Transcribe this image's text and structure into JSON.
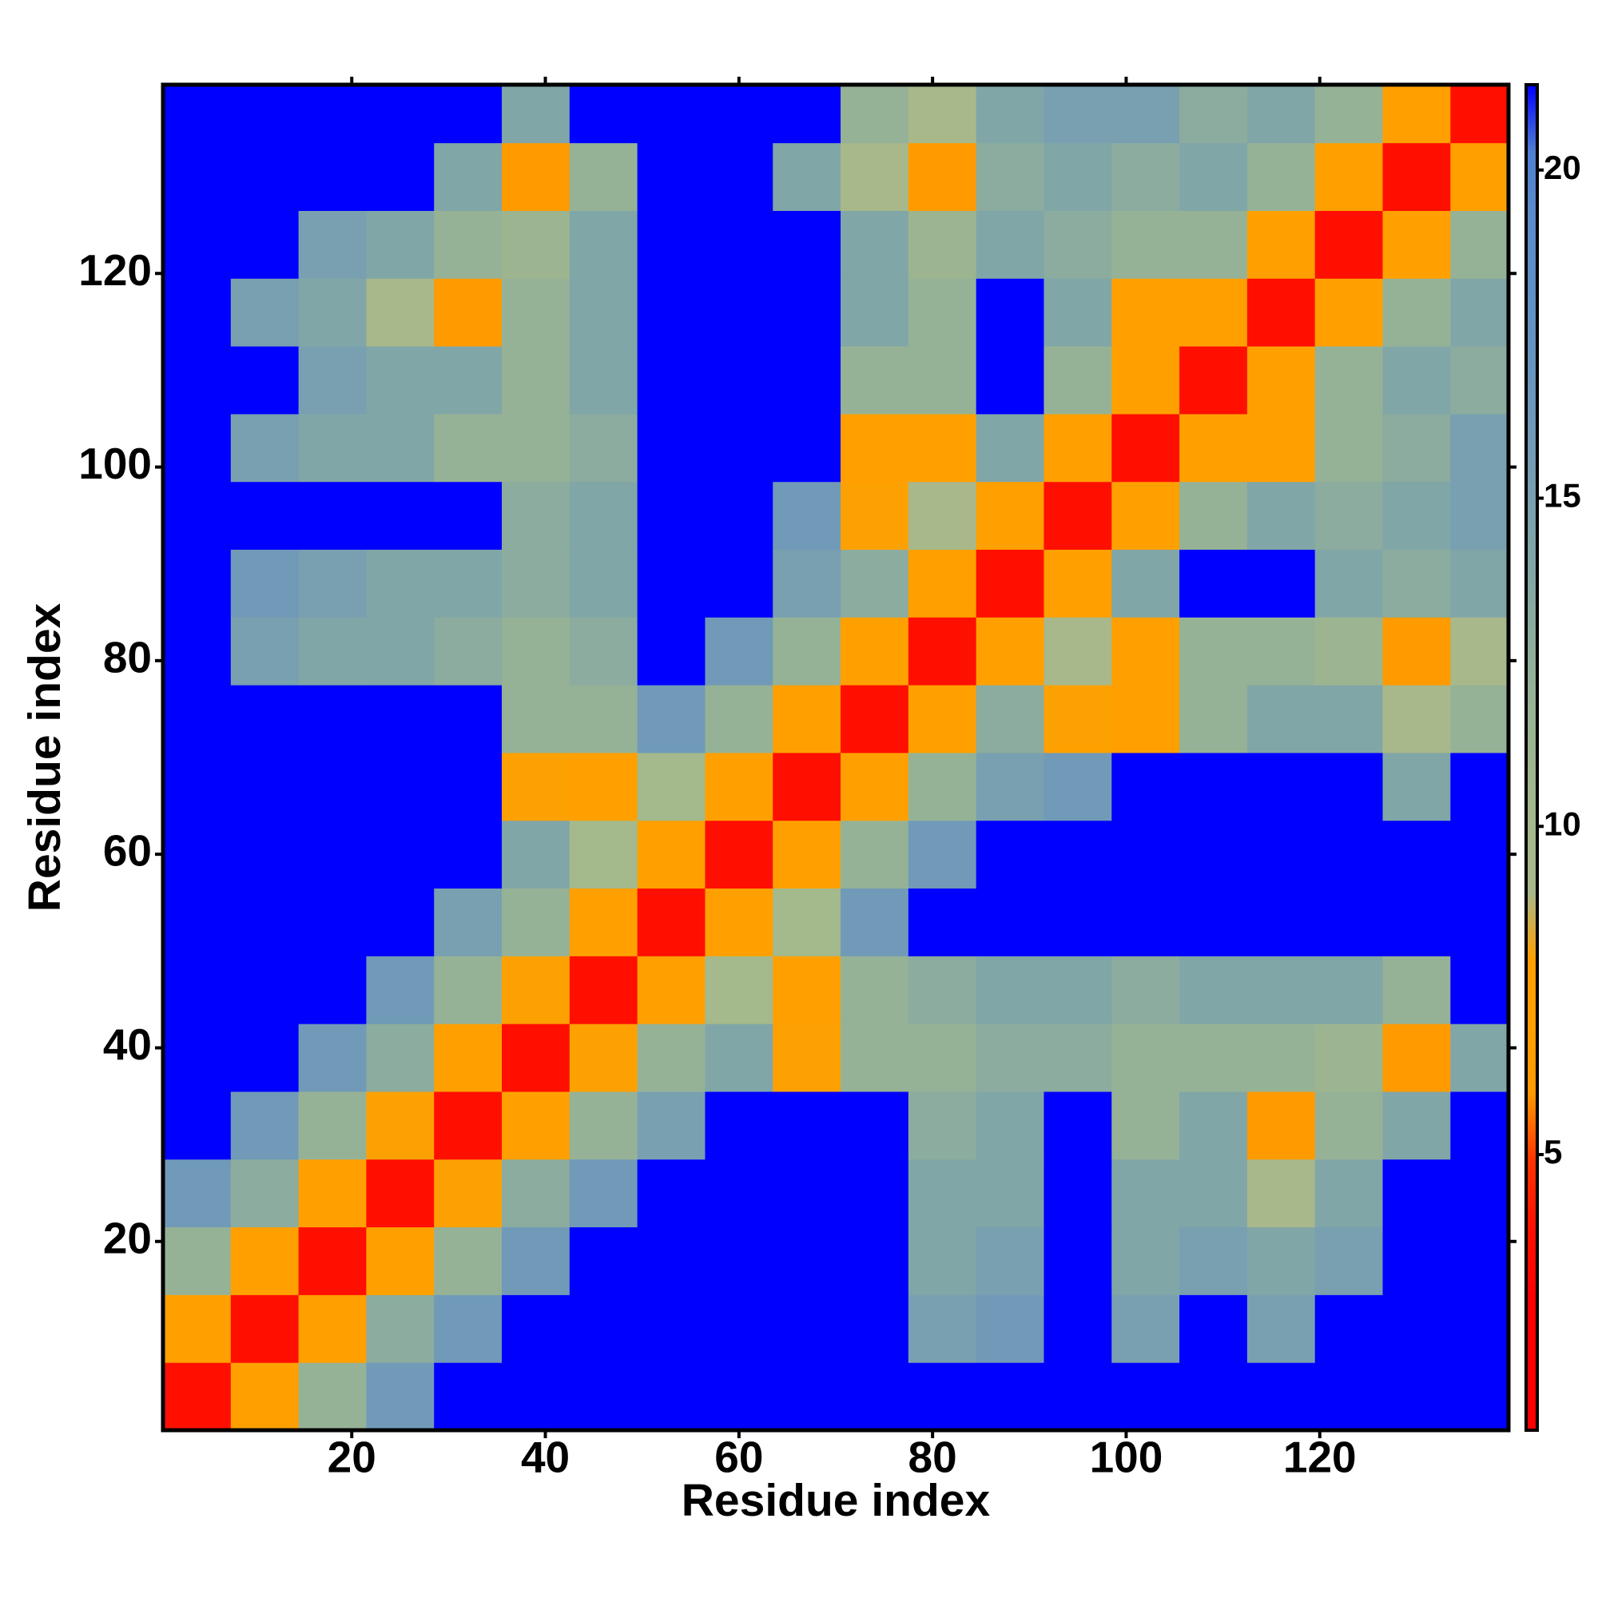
{
  "chart_data": {
    "type": "heatmap",
    "xlabel": "Residue index",
    "ylabel": "Residue index",
    "xbins": [
      0.5,
      7.5,
      14.5,
      21.5,
      28.5,
      35.5,
      42.5,
      49.5,
      56.5,
      63.5,
      70.5,
      77.5,
      84.5,
      91.5,
      98.5,
      105.5,
      112.5,
      119.5,
      126.5,
      133.5,
      139.5
    ],
    "ybins": [
      0.5,
      7.5,
      14.5,
      21.5,
      28.5,
      35.5,
      42.5,
      49.5,
      56.5,
      63.5,
      70.5,
      77.5,
      84.5,
      91.5,
      98.5,
      105.5,
      112.5,
      119.5,
      126.5,
      133.5,
      139.5
    ],
    "values": [
      [
        3.8,
        7,
        12,
        16,
        21.3,
        21.3,
        21.3,
        21.3,
        21.3,
        21.3,
        21.3,
        21.3,
        21.3,
        21.3,
        21.3,
        21.3,
        21.3,
        21.3,
        21.3,
        21.3
      ],
      [
        7,
        3.8,
        7,
        13,
        16,
        21.3,
        21.3,
        21.3,
        21.3,
        21.3,
        21.3,
        15,
        16,
        21.3,
        15,
        21.3,
        15,
        21.3,
        21.3,
        21.3
      ],
      [
        12,
        7,
        3.8,
        7,
        12,
        16,
        21.3,
        21.3,
        21.3,
        21.3,
        21.3,
        14,
        15,
        21.3,
        14,
        15,
        14,
        15,
        21.3,
        21.3
      ],
      [
        16,
        13,
        7,
        3.8,
        8,
        13,
        16,
        21.3,
        21.3,
        21.3,
        21.3,
        14,
        14,
        21.3,
        14,
        14,
        9,
        14,
        21.3,
        21.3
      ],
      [
        21.3,
        16,
        12,
        8,
        3.8,
        7,
        12,
        15,
        21.3,
        21.3,
        21.3,
        13,
        14,
        21.3,
        12,
        14,
        6,
        12,
        14,
        21.3
      ],
      [
        21.3,
        21.3,
        16,
        13,
        7,
        3.8,
        8,
        12,
        14,
        8,
        12,
        12,
        13,
        13,
        12,
        12,
        12,
        11,
        6,
        14
      ],
      [
        21.3,
        21.3,
        21.3,
        16,
        12,
        8,
        3.8,
        7,
        10,
        7,
        12,
        13,
        14,
        14,
        13,
        14,
        14,
        14,
        12,
        21.3
      ],
      [
        21.3,
        21.3,
        21.3,
        21.3,
        15,
        12,
        7,
        3.8,
        7,
        10,
        16,
        21.3,
        21.3,
        21.3,
        21.3,
        21.3,
        21.3,
        21.3,
        21.3,
        21.3
      ],
      [
        21.3,
        21.3,
        21.3,
        21.3,
        21.3,
        14,
        10,
        7,
        3.8,
        7,
        12,
        16,
        21.3,
        21.3,
        21.3,
        21.3,
        21.3,
        21.3,
        21.3,
        21.3
      ],
      [
        21.3,
        21.3,
        21.3,
        21.3,
        21.3,
        8,
        7,
        10,
        7,
        3.8,
        7,
        12,
        15,
        16,
        21.3,
        21.3,
        21.3,
        21.3,
        14,
        21.3
      ],
      [
        21.3,
        21.3,
        21.3,
        21.3,
        21.3,
        12,
        12,
        16,
        12,
        7,
        3.8,
        7,
        13,
        8,
        7,
        12,
        14,
        14,
        9,
        12
      ],
      [
        21.3,
        15,
        14,
        14,
        13,
        12,
        13,
        21.3,
        16,
        12,
        7,
        3.8,
        7,
        9,
        7,
        12,
        12,
        11,
        6,
        9
      ],
      [
        21.3,
        16,
        15,
        14,
        14,
        13,
        14,
        21.3,
        21.3,
        15,
        13,
        7,
        3.8,
        7,
        14,
        21.3,
        21.3,
        14,
        13,
        14
      ],
      [
        21.3,
        21.3,
        21.3,
        21.3,
        21.3,
        13,
        14,
        21.3,
        21.3,
        16,
        8,
        9,
        7,
        3.8,
        7,
        12,
        14,
        13,
        14,
        15
      ],
      [
        21.3,
        15,
        14,
        14,
        12,
        12,
        13,
        21.3,
        21.3,
        21.3,
        7,
        7,
        14,
        7,
        3.8,
        7,
        7,
        12,
        13,
        15
      ],
      [
        21.3,
        21.3,
        15,
        14,
        14,
        12,
        14,
        21.3,
        21.3,
        21.3,
        12,
        12,
        21.3,
        12,
        7,
        3.8,
        7,
        12,
        14,
        13
      ],
      [
        21.3,
        15,
        14,
        9,
        6,
        12,
        14,
        21.3,
        21.3,
        21.3,
        14,
        12,
        21.3,
        14,
        7,
        7,
        3.8,
        7,
        12,
        14
      ],
      [
        21.3,
        21.3,
        15,
        14,
        12,
        11,
        14,
        21.3,
        21.3,
        21.3,
        14,
        11,
        14,
        13,
        12,
        12,
        7,
        3.8,
        7,
        12
      ],
      [
        21.3,
        21.3,
        21.3,
        21.3,
        14,
        6,
        12,
        21.3,
        21.3,
        14,
        9,
        6,
        13,
        14,
        13,
        14,
        12,
        7,
        3.8,
        7
      ],
      [
        21.3,
        21.3,
        21.3,
        21.3,
        21.3,
        14,
        21.3,
        21.3,
        21.3,
        21.3,
        12,
        9,
        14,
        15,
        15,
        13,
        14,
        12,
        7,
        3.8
      ]
    ],
    "xlim": [
      0.5,
      139.5
    ],
    "ylim": [
      0.5,
      139.5
    ],
    "xticks": [
      20,
      40,
      60,
      80,
      100,
      120
    ],
    "yticks": [
      20,
      40,
      60,
      80,
      100,
      120
    ],
    "clim": [
      0.8,
      21.3
    ],
    "cticks": [
      5,
      10,
      15,
      20
    ],
    "colormap": [
      "#ff0000",
      "#ff0000",
      "#ff0000",
      "#ff1000",
      "#ff3300",
      "#ff9900",
      "#ffa000",
      "#ffa000",
      "#a8b88b",
      "#a4b98c",
      "#9cb590",
      "#96b296",
      "#8aab9f",
      "#80a5a8",
      "#779fb1",
      "#6e99ba",
      "#6694c0",
      "#5f90c6",
      "#5a8ccb",
      "#5080d0",
      "#0000ff"
    ]
  }
}
